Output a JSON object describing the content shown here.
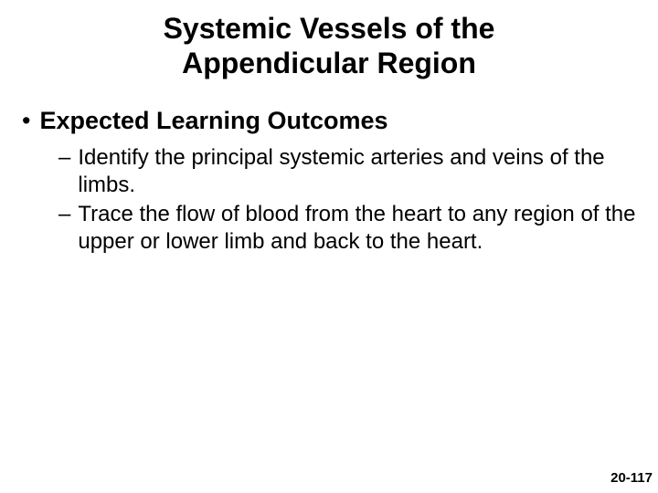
{
  "slide": {
    "title_line1": "Systemic Vessels of the",
    "title_line2": "Appendicular Region",
    "title_fontsize": 32,
    "title_color": "#000000",
    "heading_bullet": "•",
    "heading_text": "Expected Learning Outcomes",
    "heading_fontsize": 27,
    "heading_color": "#000000",
    "outcomes": [
      {
        "dash": "–",
        "text": "Identify the principal systemic arteries and veins of the limbs."
      },
      {
        "dash": "–",
        "text": "Trace the flow of blood from the heart to any region of the upper or lower limb and back to the heart."
      }
    ],
    "outcome_fontsize": 24,
    "outcome_color": "#000000",
    "page_number": "20-117",
    "page_number_fontsize": 15,
    "background_color": "#ffffff"
  }
}
